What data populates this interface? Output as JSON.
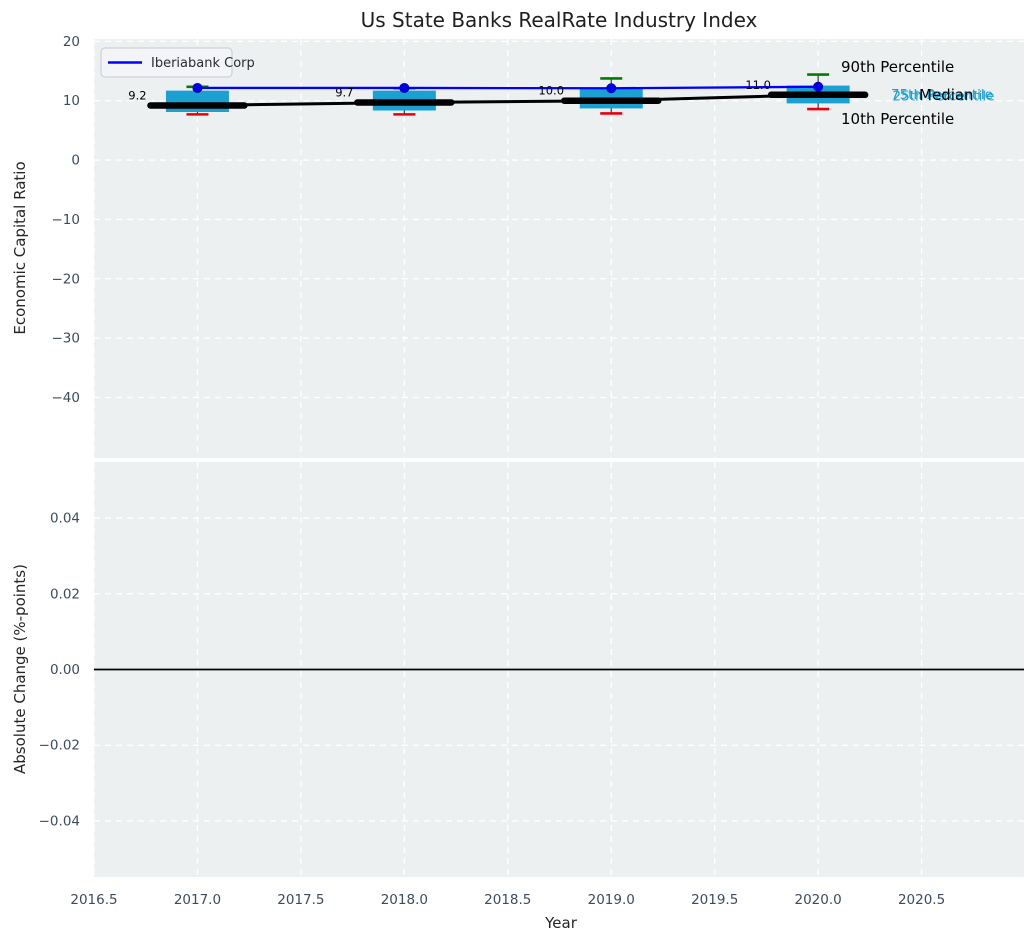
{
  "title": "Us State Banks RealRate Industry Index",
  "legend": {
    "label": "Iberiabank Corp"
  },
  "annotations": {
    "p90": "90th Percentile",
    "p75": "75th Percentile",
    "median": "Median",
    "p25": "25th Percentile",
    "p10": "10th Percentile"
  },
  "colors": {
    "company_line": "#0000ff",
    "company_marker": "#0000ee",
    "box_fill": "#1aa1d2",
    "median_line": "#000000",
    "p90_cap": "#007d00",
    "p10_cap": "#e8000b",
    "plot_bg": "#edf0f1",
    "grid": "#ffffff",
    "tick_label": "#3d4b61",
    "percentile_text": "#1aa1d2",
    "zero_line": "#000000"
  },
  "x_axis": {
    "label": "Year",
    "lim": [
      2016.5,
      2020.995
    ],
    "ticks": [
      {
        "v": 2016.5,
        "label": "2016.5"
      },
      {
        "v": 2017.0,
        "label": "2017.0"
      },
      {
        "v": 2017.5,
        "label": "2017.5"
      },
      {
        "v": 2018.0,
        "label": "2018.0"
      },
      {
        "v": 2018.5,
        "label": "2018.5"
      },
      {
        "v": 2019.0,
        "label": "2019.0"
      },
      {
        "v": 2019.5,
        "label": "2019.5"
      },
      {
        "v": 2020.0,
        "label": "2020.0"
      },
      {
        "v": 2020.5,
        "label": "2020.5"
      }
    ]
  },
  "top_axis": {
    "ylabel": "Economic Capital Ratio",
    "ylim": [
      -50.2,
      20.4
    ],
    "ticks": [
      {
        "v": 20,
        "label": "20"
      },
      {
        "v": 10,
        "label": "10"
      },
      {
        "v": 0,
        "label": "0"
      },
      {
        "v": -10,
        "label": "−10"
      },
      {
        "v": -20,
        "label": "−20"
      },
      {
        "v": -30,
        "label": "−30"
      },
      {
        "v": -40,
        "label": "−40"
      }
    ]
  },
  "bottom_axis": {
    "ylabel": "Absolute Change (%-points)",
    "ylim": [
      -0.0548,
      0.0548
    ],
    "zero_line": 0.0,
    "ticks": [
      {
        "v": 0.04,
        "label": "0.04"
      },
      {
        "v": 0.02,
        "label": "0.02"
      },
      {
        "v": 0.0,
        "label": "0.00"
      },
      {
        "v": -0.02,
        "label": "−0.02"
      },
      {
        "v": -0.04,
        "label": "−0.04"
      }
    ]
  },
  "chart_data": [
    {
      "type": "boxplot",
      "title": "Us State Banks RealRate Industry Index",
      "xlabel": "Year",
      "ylabel": "Economic Capital Ratio",
      "categories": [
        2017,
        2018,
        2019,
        2020
      ],
      "boxes": [
        {
          "x": 2017,
          "p10": 7.7,
          "p25": 8.1,
          "median": 9.2,
          "p75": 11.7,
          "p90": 12.35,
          "label": "9.2"
        },
        {
          "x": 2018,
          "p10": 7.7,
          "p25": 8.35,
          "median": 9.7,
          "p75": 11.7,
          "p90": 12.1,
          "label": "9.7"
        },
        {
          "x": 2019,
          "p10": 7.85,
          "p25": 8.7,
          "median": 10.0,
          "p75": 12.2,
          "p90": 13.75,
          "label": "10.0"
        },
        {
          "x": 2020,
          "p10": 8.6,
          "p25": 9.55,
          "median": 11.0,
          "p75": 12.55,
          "p90": 14.4,
          "label": "11.0"
        }
      ],
      "series": [
        {
          "name": "Iberiabank Corp",
          "values": [
            12.15,
            12.15,
            12.1,
            12.35
          ],
          "color": "#0000ff"
        }
      ],
      "xlim": [
        2016.5,
        2020.995
      ],
      "ylim": [
        -50.2,
        20.4
      ],
      "grid": true,
      "legend_position": "upper left"
    },
    {
      "type": "line",
      "ylabel": "Absolute Change (%-points)",
      "categories": [],
      "values": [],
      "ylim": [
        -0.0548,
        0.0548
      ],
      "zero_line": 0.0,
      "grid": true
    }
  ]
}
